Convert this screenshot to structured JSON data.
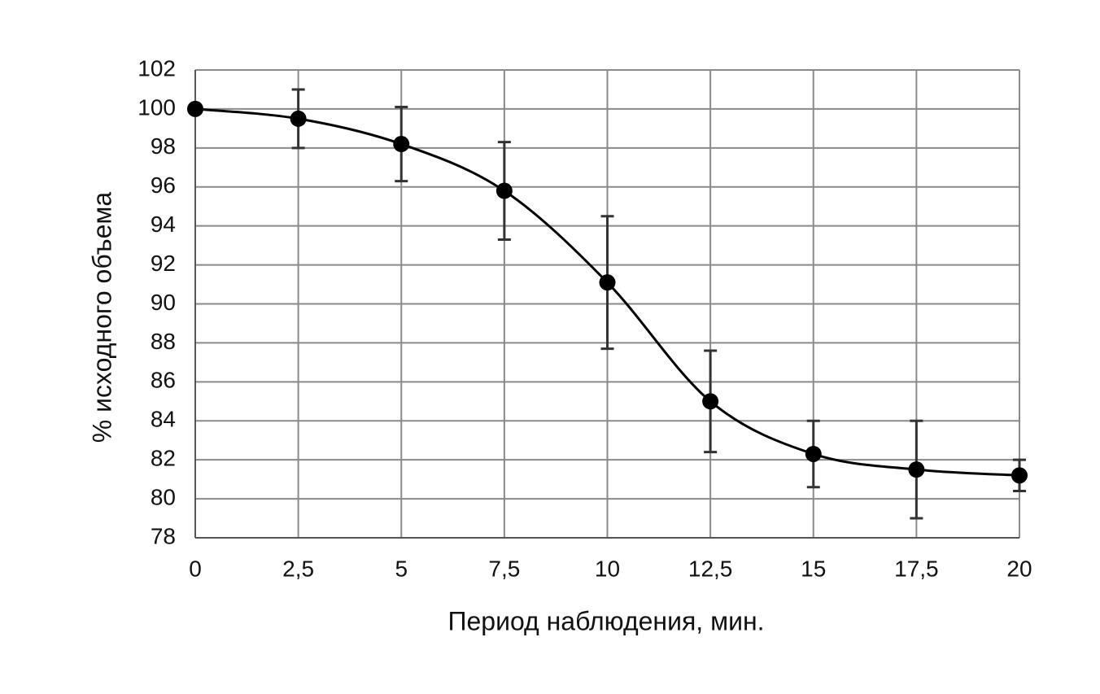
{
  "chart_data": {
    "type": "line",
    "x_label": "Период наблюдения, мин.",
    "y_label": "% исходного объема",
    "x": [
      0,
      2.5,
      5,
      7.5,
      10,
      12.5,
      15,
      17.5,
      20
    ],
    "values": [
      100.0,
      99.5,
      98.2,
      95.8,
      91.1,
      85.0,
      82.3,
      81.5,
      81.2
    ],
    "errors": [
      null,
      1.5,
      1.9,
      2.5,
      3.4,
      2.6,
      1.7,
      2.5,
      0.8
    ],
    "color": "#000000",
    "smooth": true,
    "grid": true,
    "xlim": [
      0,
      20
    ],
    "xticks": [
      0,
      {
        "value": 2.5,
        "label": "2,5"
      },
      5,
      {
        "value": 7.5,
        "label": "7,5"
      },
      10,
      {
        "value": 12.5,
        "label": "12,5"
      },
      15,
      {
        "value": 17.5,
        "label": "17,5"
      },
      20
    ],
    "ylim": [
      78,
      102
    ],
    "yticks": [
      78,
      80,
      82,
      84,
      86,
      88,
      90,
      92,
      94,
      96,
      98,
      100,
      102
    ]
  }
}
